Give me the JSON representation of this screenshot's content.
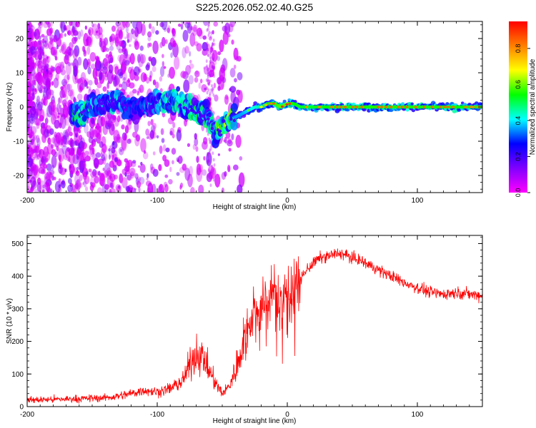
{
  "figure_title": "S225.2026.052.02.40.G25",
  "chart_data": [
    {
      "type": "heatmap",
      "name": "spectrogram",
      "xlabel": "Height of straight line (km)",
      "ylabel": "Frequency (Hz)",
      "xlim": [
        -200,
        150
      ],
      "ylim": [
        -25,
        25
      ],
      "xticks": [
        -200,
        -100,
        0,
        100
      ],
      "yticks": [
        -20,
        -10,
        0,
        10,
        20
      ],
      "xtick_labels": [
        "-200",
        "-100",
        "0",
        "100"
      ],
      "ytick_labels": [
        "-20",
        "-10",
        "0",
        "10",
        "20"
      ],
      "colorbar": {
        "label": "Normalized spectral amplitude",
        "range": [
          0,
          0.95
        ],
        "ticks": [
          0,
          0.2,
          0.4,
          0.6,
          0.8
        ],
        "tick_labels": [
          "0.0",
          "0.2",
          "0.4",
          "0.6",
          "0.8"
        ],
        "colormap": [
          "#ff00ff",
          "#8000ff",
          "#0000ff",
          "#00ffff",
          "#00ff00",
          "#ffff00",
          "#ff8000",
          "#ff0000"
        ]
      },
      "ridge": {
        "x": [
          -160,
          -150,
          -140,
          -130,
          -120,
          -110,
          -100,
          -90,
          -80,
          -70,
          -60,
          -55,
          -50,
          -45,
          -40,
          -35,
          -30,
          -25,
          -20,
          -15,
          -10,
          -5,
          0,
          5,
          10,
          20,
          40,
          60,
          80,
          100,
          120,
          150
        ],
        "freq": [
          -2,
          0,
          1,
          2,
          -1,
          0,
          1,
          2,
          1,
          -1,
          -3,
          -8,
          -5,
          -4,
          -3,
          -2,
          -1,
          0,
          0,
          1,
          1,
          0,
          1,
          1,
          0,
          0,
          0,
          0,
          0,
          0,
          0,
          0
        ],
        "amplitude": [
          0.5,
          0.4,
          0.35,
          0.45,
          0.3,
          0.35,
          0.4,
          0.45,
          0.45,
          0.5,
          0.45,
          0.55,
          0.65,
          0.6,
          0.55,
          0.55,
          0.6,
          0.65,
          0.7,
          0.8,
          0.85,
          0.9,
          0.9,
          0.85,
          0.8,
          0.8,
          0.85,
          0.85,
          0.85,
          0.85,
          0.85,
          0.8
        ]
      }
    },
    {
      "type": "line",
      "name": "snr",
      "xlabel": "Height of straight line (km)",
      "ylabel": "SNR (10 * v/v)",
      "xlim": [
        -200,
        150
      ],
      "ylim": [
        0,
        525
      ],
      "xticks": [
        -200,
        -100,
        0,
        100
      ],
      "yticks": [
        0,
        100,
        200,
        300,
        400,
        500
      ],
      "xtick_labels": [
        "-200",
        "-100",
        "0",
        "100"
      ],
      "ytick_labels": [
        "0",
        "100",
        "200",
        "300",
        "400",
        "500"
      ],
      "color": "#ff0000",
      "series": [
        {
          "name": "SNR",
          "x": [
            -200,
            -180,
            -160,
            -140,
            -130,
            -120,
            -110,
            -100,
            -90,
            -80,
            -75,
            -70,
            -65,
            -60,
            -55,
            -50,
            -45,
            -40,
            -35,
            -30,
            -25,
            -20,
            -15,
            -10,
            -5,
            0,
            5,
            10,
            15,
            20,
            25,
            30,
            35,
            40,
            45,
            50,
            55,
            60,
            70,
            80,
            90,
            100,
            110,
            120,
            130,
            140,
            150
          ],
          "y": [
            20,
            22,
            24,
            27,
            32,
            40,
            50,
            45,
            55,
            80,
            130,
            165,
            150,
            110,
            70,
            40,
            60,
            110,
            180,
            250,
            290,
            300,
            330,
            340,
            320,
            350,
            370,
            390,
            420,
            440,
            455,
            460,
            465,
            470,
            465,
            455,
            450,
            440,
            420,
            400,
            380,
            365,
            350,
            345,
            350,
            345,
            340
          ]
        }
      ]
    }
  ]
}
